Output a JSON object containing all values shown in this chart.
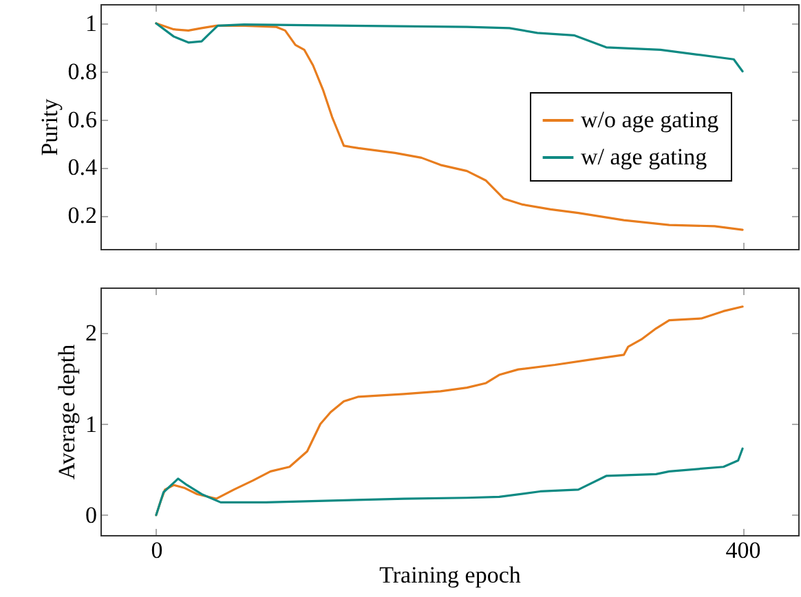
{
  "chart_data": [
    {
      "type": "line",
      "ylabel": "Purity",
      "xlim": [
        -38,
        438
      ],
      "xticks": [
        {
          "value": 0,
          "label": null
        },
        {
          "value": 400,
          "label": null
        }
      ],
      "ylim": [
        0.06,
        1.08
      ],
      "yticks": [
        0.2,
        0.4,
        0.6,
        0.8,
        1
      ],
      "tick_labels": "y",
      "grid": false,
      "legend": "right",
      "series": [
        {
          "name": "w/o age gating",
          "color": "#e87d1e",
          "x": [
            0,
            12,
            22,
            31,
            41,
            60,
            82,
            88,
            95,
            101,
            107,
            114,
            120,
            122,
            128,
            138,
            163,
            181,
            194,
            212,
            225,
            237,
            250,
            269,
            288,
            319,
            350,
            381,
            400
          ],
          "values": [
            1.0,
            0.975,
            0.97,
            0.98,
            0.99,
            0.99,
            0.985,
            0.97,
            0.91,
            0.89,
            0.825,
            0.72,
            0.61,
            0.58,
            0.49,
            0.48,
            0.46,
            0.44,
            0.41,
            0.385,
            0.345,
            0.27,
            0.245,
            0.225,
            0.21,
            0.18,
            0.16,
            0.155,
            0.14
          ]
        },
        {
          "name": "w/ age gating",
          "color": "#0f8a83",
          "x": [
            0,
            12,
            22,
            31,
            36,
            42,
            60,
            212,
            241,
            260,
            285,
            307,
            344,
            369,
            394,
            400
          ],
          "values": [
            1.0,
            0.945,
            0.92,
            0.925,
            0.955,
            0.99,
            0.995,
            0.985,
            0.98,
            0.96,
            0.95,
            0.9,
            0.89,
            0.87,
            0.85,
            0.8
          ]
        }
      ]
    },
    {
      "type": "line",
      "xlabel": "Training epoch",
      "ylabel": "Average depth",
      "xlim": [
        -38,
        438
      ],
      "xticks": [
        0,
        400
      ],
      "ylim": [
        -0.22,
        2.5
      ],
      "yticks": [
        0,
        1,
        2
      ],
      "grid": false,
      "series": [
        {
          "color": "#e87d1e",
          "x": [
            0,
            3,
            6,
            12,
            19,
            28,
            41,
            53,
            66,
            78,
            91,
            103,
            112,
            119,
            128,
            138,
            169,
            194,
            212,
            225,
            234,
            247,
            272,
            297,
            319,
            322,
            331,
            341,
            350,
            372,
            387,
            400
          ],
          "values": [
            0,
            0.15,
            0.28,
            0.33,
            0.3,
            0.23,
            0.18,
            0.28,
            0.38,
            0.48,
            0.53,
            0.7,
            1.0,
            1.13,
            1.25,
            1.3,
            1.33,
            1.36,
            1.4,
            1.45,
            1.54,
            1.6,
            1.65,
            1.71,
            1.76,
            1.85,
            1.93,
            2.05,
            2.14,
            2.16,
            2.24,
            2.29
          ]
        },
        {
          "color": "#0f8a83",
          "x": [
            0,
            5,
            15,
            21,
            31,
            44,
            75,
            169,
            212,
            234,
            262,
            288,
            307,
            341,
            350,
            387,
            397,
            400
          ],
          "values": [
            0,
            0.25,
            0.4,
            0.33,
            0.23,
            0.14,
            0.14,
            0.18,
            0.19,
            0.2,
            0.26,
            0.28,
            0.43,
            0.45,
            0.48,
            0.53,
            0.6,
            0.73
          ]
        }
      ]
    }
  ]
}
